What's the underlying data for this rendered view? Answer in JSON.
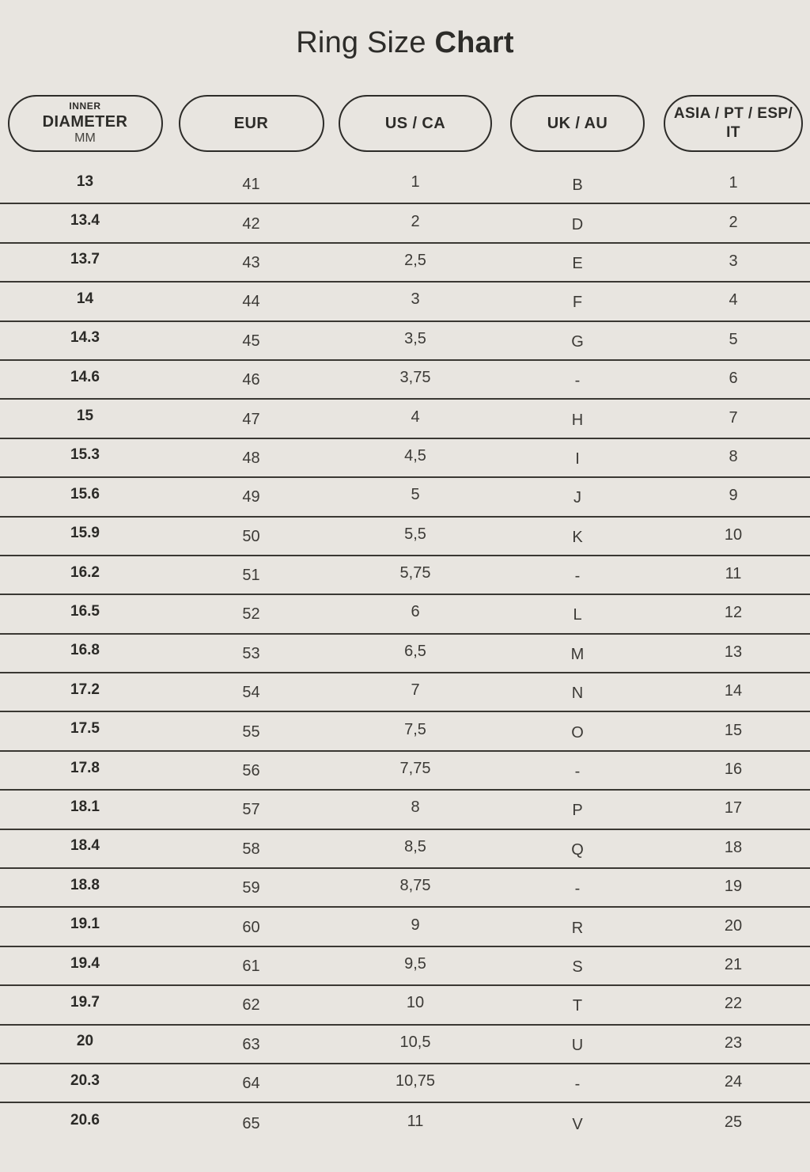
{
  "title": {
    "regular": "Ring Size ",
    "bold": "Chart"
  },
  "colors": {
    "background": "#e8e5e0",
    "ink": "#2d2c29",
    "cell_text": "#3c3a36",
    "divider_line": "#3a3833"
  },
  "header": {
    "diameter_top": "INNER",
    "diameter_main": "DIAMETER",
    "diameter_bottom": "MM",
    "eur": "EUR",
    "us_ca": "US / CA",
    "uk_au": "UK / AU",
    "asia": "ASIA / PT / ESP/ IT"
  },
  "chart_data": {
    "type": "table",
    "title": "Ring Size Chart",
    "columns": [
      "INNER DIAMETER MM",
      "EUR",
      "US / CA",
      "UK / AU",
      "ASIA / PT / ESP/ IT"
    ],
    "rows": [
      [
        "13",
        "41",
        "1",
        "B",
        "1"
      ],
      [
        "13.4",
        "42",
        "2",
        "D",
        "2"
      ],
      [
        "13.7",
        "43",
        "2,5",
        "E",
        "3"
      ],
      [
        "14",
        "44",
        "3",
        "F",
        "4"
      ],
      [
        "14.3",
        "45",
        "3,5",
        "G",
        "5"
      ],
      [
        "14.6",
        "46",
        "3,75",
        "-",
        "6"
      ],
      [
        "15",
        "47",
        "4",
        "H",
        "7"
      ],
      [
        "15.3",
        "48",
        "4,5",
        "I",
        "8"
      ],
      [
        "15.6",
        "49",
        "5",
        "J",
        "9"
      ],
      [
        "15.9",
        "50",
        "5,5",
        "K",
        "10"
      ],
      [
        "16.2",
        "51",
        "5,75",
        "-",
        "11"
      ],
      [
        "16.5",
        "52",
        "6",
        "L",
        "12"
      ],
      [
        "16.8",
        "53",
        "6,5",
        "M",
        "13"
      ],
      [
        "17.2",
        "54",
        "7",
        "N",
        "14"
      ],
      [
        "17.5",
        "55",
        "7,5",
        "O",
        "15"
      ],
      [
        "17.8",
        "56",
        "7,75",
        "-",
        "16"
      ],
      [
        "18.1",
        "57",
        "8",
        "P",
        "17"
      ],
      [
        "18.4",
        "58",
        "8,5",
        "Q",
        "18"
      ],
      [
        "18.8",
        "59",
        "8,75",
        "-",
        "19"
      ],
      [
        "19.1",
        "60",
        "9",
        "R",
        "20"
      ],
      [
        "19.4",
        "61",
        "9,5",
        "S",
        "21"
      ],
      [
        "19.7",
        "62",
        "10",
        "T",
        "22"
      ],
      [
        "20",
        "63",
        "10,5",
        "U",
        "23"
      ],
      [
        "20.3",
        "64",
        "10,75",
        "-",
        "24"
      ],
      [
        "20.6",
        "65",
        "11",
        "V",
        "25"
      ]
    ]
  }
}
